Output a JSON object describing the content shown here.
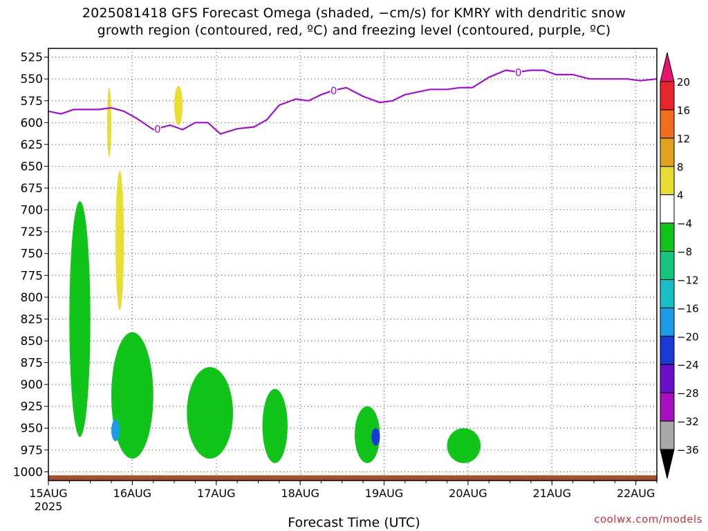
{
  "title_line1": "2025081418 GFS Forecast Omega (shaded, −cm/s) for KMRY with dendritic snow",
  "title_line2": "growth region (contoured, red, ºC) and freezing level (contoured, purple, ºC)",
  "credit": "coolwx.com/models",
  "chart_data": {
    "type": "heatmap",
    "xlabel": "Forecast Time (UTC)",
    "x_ticks": [
      {
        "t": 14.25,
        "label": "15AUG",
        "sublabel": "2025"
      },
      {
        "t": 15.25,
        "label": "16AUG"
      },
      {
        "t": 16.25,
        "label": "17AUG"
      },
      {
        "t": 17.25,
        "label": "18AUG"
      },
      {
        "t": 18.25,
        "label": "19AUG"
      },
      {
        "t": 19.25,
        "label": "20AUG"
      },
      {
        "t": 20.25,
        "label": "21AUG"
      },
      {
        "t": 21.25,
        "label": "22AUG"
      }
    ],
    "xlim": [
      14.25,
      21.5
    ],
    "y_ticks": [
      525,
      550,
      575,
      600,
      625,
      650,
      675,
      700,
      725,
      750,
      775,
      800,
      825,
      850,
      875,
      900,
      925,
      950,
      975,
      1000
    ],
    "ylim": [
      515,
      1010
    ],
    "grid": true,
    "colorbar": {
      "labels": [
        "20",
        "16",
        "12",
        "8",
        "4",
        "−4",
        "−8",
        "−12",
        "−16",
        "−20",
        "−24",
        "−28",
        "−32",
        "−36"
      ],
      "colors": [
        "#e8156e",
        "#e8252d",
        "#f06d1e",
        "#e1a21f",
        "#e8dd32",
        "#ffffff",
        "#11c41a",
        "#17c47d",
        "#17bfc4",
        "#1a9ce8",
        "#1a3ad8",
        "#6a10c8",
        "#a80fc0",
        "#a8a8a8",
        "#000000"
      ]
    },
    "freezing_level": {
      "label": "0",
      "t": [
        14.25,
        14.4,
        14.55,
        14.7,
        14.85,
        15.0,
        15.15,
        15.3,
        15.5,
        15.7,
        15.85,
        16.0,
        16.15,
        16.3,
        16.5,
        16.7,
        16.85,
        17.0,
        17.2,
        17.35,
        17.5,
        17.65,
        17.8,
        18.0,
        18.2,
        18.35,
        18.5,
        18.65,
        18.8,
        19.0,
        19.15,
        19.3,
        19.5,
        19.7,
        19.85,
        20.0,
        20.15,
        20.3,
        20.5,
        20.7,
        20.85,
        21.0,
        21.15,
        21.3,
        21.5
      ],
      "p": [
        587,
        590,
        585,
        585,
        585,
        583,
        587,
        595,
        608,
        603,
        608,
        600,
        600,
        613,
        607,
        605,
        597,
        580,
        573,
        575,
        568,
        563,
        560,
        570,
        577,
        575,
        568,
        565,
        562,
        562,
        560,
        560,
        548,
        540,
        542,
        540,
        540,
        545,
        545,
        550,
        550,
        550,
        550,
        552,
        550
      ]
    },
    "omega_shaded_regions": [
      {
        "level": "4",
        "color": "#e8dd32",
        "t": [
          15.05,
          15.15
        ],
        "p": [
          655,
          815
        ]
      },
      {
        "level": "4",
        "color": "#e8dd32",
        "t": [
          14.95,
          15.0
        ],
        "p": [
          560,
          640
        ]
      },
      {
        "level": "4",
        "color": "#e8dd32",
        "t": [
          15.75,
          15.85
        ],
        "p": [
          558,
          603
        ]
      },
      {
        "level": "-4",
        "color": "#11c41a",
        "t": [
          14.5,
          14.75
        ],
        "p": [
          690,
          960
        ]
      },
      {
        "level": "-4",
        "color": "#11c41a",
        "t": [
          15.0,
          15.5
        ],
        "p": [
          840,
          985
        ]
      },
      {
        "level": "-4",
        "color": "#11c41a",
        "t": [
          15.9,
          16.45
        ],
        "p": [
          880,
          985
        ]
      },
      {
        "level": "-4",
        "color": "#11c41a",
        "t": [
          16.8,
          17.1
        ],
        "p": [
          905,
          990
        ]
      },
      {
        "level": "-4",
        "color": "#11c41a",
        "t": [
          17.9,
          18.2
        ],
        "p": [
          925,
          990
        ]
      },
      {
        "level": "-4",
        "color": "#11c41a",
        "t": [
          19.0,
          19.4
        ],
        "p": [
          950,
          990
        ]
      },
      {
        "level": "-16",
        "color": "#1a9ce8",
        "t": [
          15.0,
          15.1
        ],
        "p": [
          940,
          965
        ]
      },
      {
        "level": "-20",
        "color": "#1a3ad8",
        "t": [
          18.1,
          18.2
        ],
        "p": [
          950,
          970
        ]
      }
    ]
  }
}
